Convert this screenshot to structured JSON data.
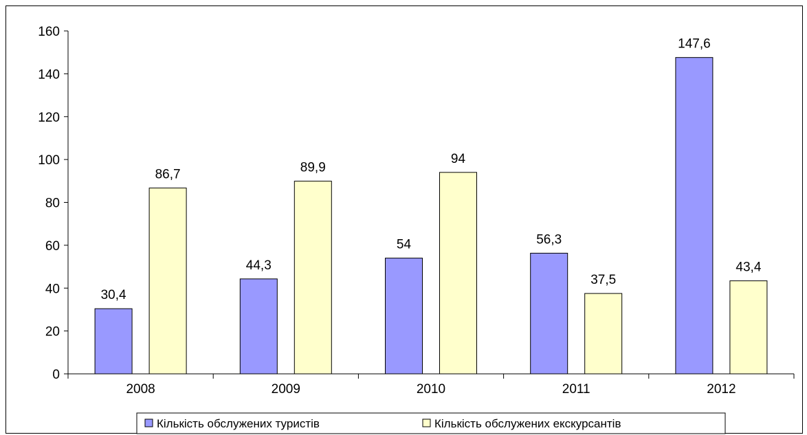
{
  "chart_data": {
    "type": "bar",
    "title": "",
    "xlabel": "",
    "ylabel": "",
    "ylim": [
      0,
      160
    ],
    "yticks": [
      0,
      20,
      40,
      60,
      80,
      100,
      120,
      140,
      160
    ],
    "grid": false,
    "legend_position": "bottom",
    "categories": [
      "2008",
      "2009",
      "2010",
      "2011",
      "2012"
    ],
    "data_labels": {
      "Кількість обслужених туристів": [
        "30,4",
        "44,3",
        "54",
        "56,3",
        "147,6"
      ],
      "Кількість обслужених екскурсантів": [
        "86,7",
        "89,9",
        "94",
        "37,5",
        "43,4"
      ]
    },
    "series": [
      {
        "name": "Кількість обслужених туристів",
        "values": [
          30.4,
          44.3,
          54,
          56.3,
          147.6
        ],
        "color": "#9999ff"
      },
      {
        "name": "Кількість обслужених екскурсантів",
        "values": [
          86.7,
          89.9,
          94,
          37.5,
          43.4
        ],
        "color": "#ffffcc"
      }
    ]
  }
}
